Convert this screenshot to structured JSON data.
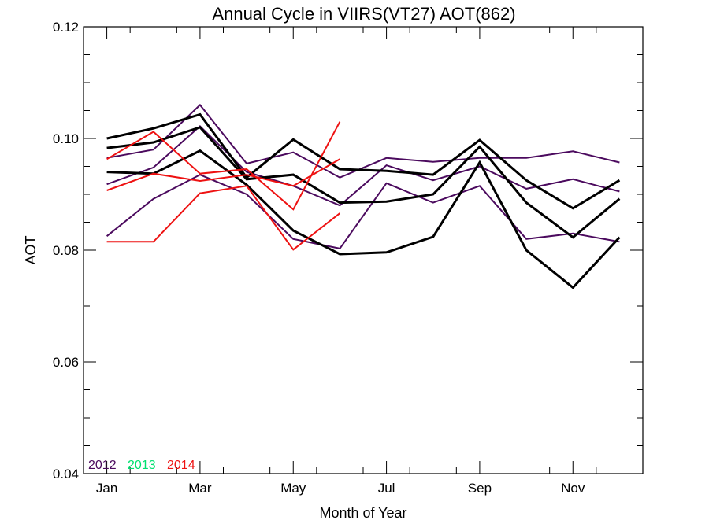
{
  "chart_data": {
    "type": "line",
    "title": "Annual Cycle in VIIRS(VT27) AOT(862)",
    "xlabel": "Month of Year",
    "ylabel": "AOT",
    "xlim": [
      1,
      12
    ],
    "ylim": [
      0.04,
      0.12
    ],
    "x_ticks": [
      {
        "value": 1,
        "label": "Jan"
      },
      {
        "value": 3,
        "label": "Mar"
      },
      {
        "value": 5,
        "label": "May"
      },
      {
        "value": 7,
        "label": "Jul"
      },
      {
        "value": 9,
        "label": "Sep"
      },
      {
        "value": 11,
        "label": "Nov"
      }
    ],
    "y_ticks": [
      {
        "value": 0.04,
        "label": "0.04"
      },
      {
        "value": 0.06,
        "label": "0.06"
      },
      {
        "value": 0.08,
        "label": "0.08"
      },
      {
        "value": 0.1,
        "label": "0.10"
      },
      {
        "value": 0.12,
        "label": "0.12"
      }
    ],
    "legend": {
      "placement": "bottom-left",
      "entries": [
        {
          "label": "2012",
          "color": "#4b0a5e"
        },
        {
          "label": "2013",
          "color": "#00e070"
        },
        {
          "label": "2014",
          "color": "#ee1111"
        }
      ]
    },
    "series": [
      {
        "color": "#4b0a5e",
        "width": 2,
        "x": [
          1,
          2,
          3,
          4,
          5,
          6,
          7,
          8,
          9,
          10,
          11,
          12
        ],
        "y": [
          0.0965,
          0.098,
          0.106,
          0.0955,
          0.0975,
          0.093,
          0.0965,
          0.0958,
          0.0965,
          0.0965,
          0.0977,
          0.0957
        ]
      },
      {
        "color": "#4b0a5e",
        "width": 2,
        "x": [
          1,
          2,
          3,
          4,
          5,
          6,
          7,
          8,
          9,
          10,
          11,
          12
        ],
        "y": [
          0.0918,
          0.0948,
          0.1022,
          0.094,
          0.0915,
          0.088,
          0.0952,
          0.0925,
          0.095,
          0.091,
          0.0927,
          0.0905
        ]
      },
      {
        "color": "#4b0a5e",
        "width": 2,
        "x": [
          1,
          2,
          3,
          4,
          5,
          6,
          7,
          8,
          9,
          10,
          11,
          12
        ],
        "y": [
          0.0825,
          0.0892,
          0.0935,
          0.09,
          0.082,
          0.0803,
          0.092,
          0.0885,
          0.0915,
          0.082,
          0.083,
          0.0815
        ]
      },
      {
        "color": "#000000",
        "width": 3,
        "x": [
          1,
          2,
          3,
          4,
          5,
          6,
          7,
          8,
          9,
          10,
          11,
          12
        ],
        "y": [
          0.1,
          0.1018,
          0.1043,
          0.093,
          0.0998,
          0.0945,
          0.0942,
          0.0935,
          0.0997,
          0.0925,
          0.0875,
          0.0925
        ]
      },
      {
        "color": "#000000",
        "width": 3,
        "x": [
          1,
          2,
          3,
          4,
          5,
          6,
          7,
          8,
          9,
          10,
          11,
          12
        ],
        "y": [
          0.0983,
          0.0993,
          0.102,
          0.0927,
          0.0935,
          0.0885,
          0.0887,
          0.09,
          0.0985,
          0.0885,
          0.0823,
          0.0892
        ]
      },
      {
        "color": "#000000",
        "width": 3,
        "x": [
          1,
          2,
          3,
          4,
          5,
          6,
          7,
          8,
          9,
          10,
          11,
          12
        ],
        "y": [
          0.094,
          0.0937,
          0.0978,
          0.0917,
          0.0835,
          0.0793,
          0.0796,
          0.0824,
          0.0957,
          0.08,
          0.0733,
          0.0823
        ]
      },
      {
        "color": "#ee1111",
        "width": 2,
        "x": [
          1,
          2,
          3,
          4,
          5,
          6
        ],
        "y": [
          0.0963,
          0.1012,
          0.0937,
          0.0945,
          0.0873,
          0.103
        ]
      },
      {
        "color": "#ee1111",
        "width": 2,
        "x": [
          1,
          2,
          3,
          4,
          5,
          6
        ],
        "y": [
          0.0907,
          0.0937,
          0.0924,
          0.0935,
          0.0915,
          0.0963
        ]
      },
      {
        "color": "#ee1111",
        "width": 2,
        "x": [
          1,
          2,
          3,
          4,
          5,
          6
        ],
        "y": [
          0.0815,
          0.0815,
          0.0902,
          0.0915,
          0.0801,
          0.0866
        ]
      }
    ]
  }
}
